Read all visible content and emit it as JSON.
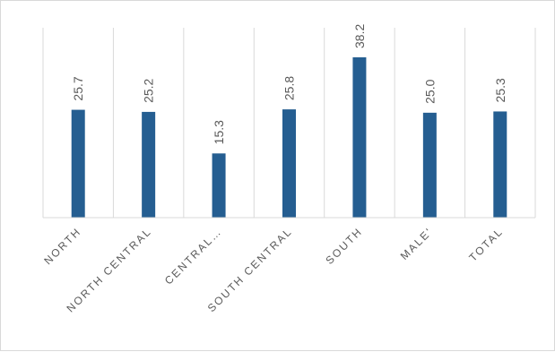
{
  "chart_data": {
    "type": "bar",
    "categories": [
      "NORTH",
      "NORTH CENTRAL",
      "CENTRAL…",
      "SOUTH CENTRAL",
      "SOUTH",
      "MALE'",
      "TOTAL"
    ],
    "values": [
      25.7,
      25.2,
      15.3,
      25.8,
      38.2,
      25.0,
      25.3
    ],
    "data_labels": [
      "25.7",
      "25.2",
      "15.3",
      "25.8",
      "38.2",
      "25.0",
      "25.3"
    ],
    "title": "",
    "xlabel": "",
    "ylabel": "",
    "ylim": [
      0,
      40
    ],
    "grid": "vertical category separators",
    "legend": "none",
    "colors": {
      "bar": "#255E91",
      "grid": "#d9d9d9",
      "text": "#595959"
    }
  }
}
